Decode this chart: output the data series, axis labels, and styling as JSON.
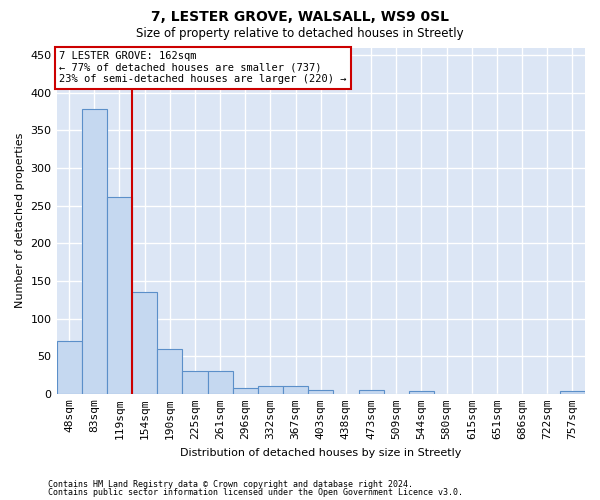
{
  "title_line1": "7, LESTER GROVE, WALSALL, WS9 0SL",
  "title_line2": "Size of property relative to detached houses in Streetly",
  "xlabel": "Distribution of detached houses by size in Streetly",
  "ylabel": "Number of detached properties",
  "categories": [
    "48sqm",
    "83sqm",
    "119sqm",
    "154sqm",
    "190sqm",
    "225sqm",
    "261sqm",
    "296sqm",
    "332sqm",
    "367sqm",
    "403sqm",
    "438sqm",
    "473sqm",
    "509sqm",
    "544sqm",
    "580sqm",
    "615sqm",
    "651sqm",
    "686sqm",
    "722sqm",
    "757sqm"
  ],
  "values": [
    70,
    378,
    262,
    135,
    59,
    30,
    30,
    8,
    10,
    10,
    5,
    0,
    5,
    0,
    4,
    0,
    0,
    0,
    0,
    0,
    4
  ],
  "bar_color": "#c5d8f0",
  "bar_edge_color": "#5b8fc9",
  "vline_color": "#cc0000",
  "annotation_text": "7 LESTER GROVE: 162sqm\n← 77% of detached houses are smaller (737)\n23% of semi-detached houses are larger (220) →",
  "annotation_box_color": "white",
  "annotation_box_edge_color": "#cc0000",
  "footnote_line1": "Contains HM Land Registry data © Crown copyright and database right 2024.",
  "footnote_line2": "Contains public sector information licensed under the Open Government Licence v3.0.",
  "ylim": [
    0,
    460
  ],
  "yticks": [
    0,
    50,
    100,
    150,
    200,
    250,
    300,
    350,
    400,
    450
  ],
  "background_color": "#dce6f5",
  "grid_color": "white",
  "fig_width": 6.0,
  "fig_height": 5.0,
  "dpi": 100
}
